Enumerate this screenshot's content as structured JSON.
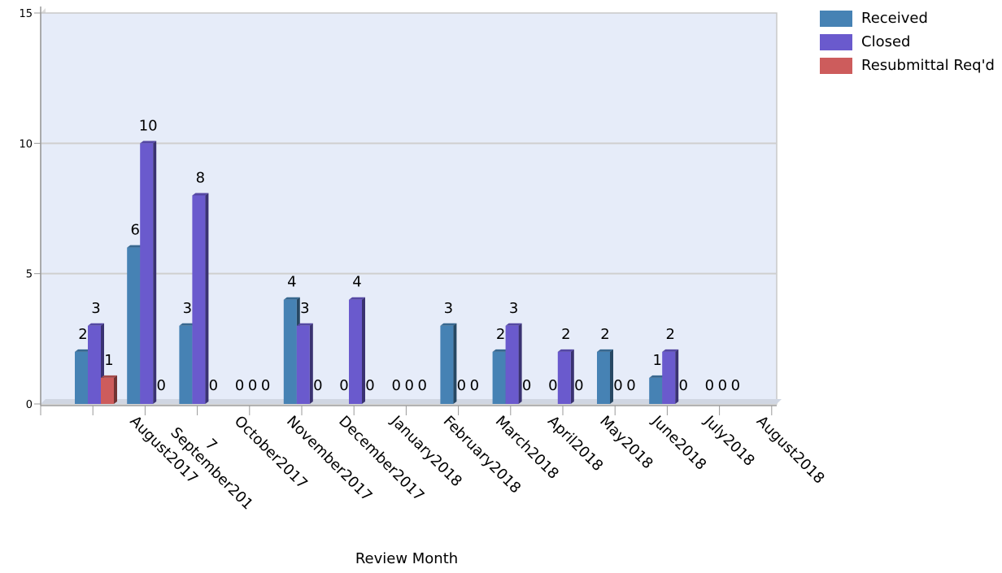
{
  "chart_data": {
    "type": "bar",
    "title": "",
    "xlabel": "Review Month",
    "ylabel": "",
    "ylim": [
      0,
      15
    ],
    "yticks": [
      "0",
      "5",
      "10",
      "15"
    ],
    "grid": true,
    "legend_position": "top-right",
    "categories": [
      "August2017",
      "September2017",
      "October2017",
      "November2017",
      "December2017",
      "January2018",
      "February2018",
      "March2018",
      "April2018",
      "May2018",
      "June2018",
      "July2018",
      "August2018"
    ],
    "category_lines": [
      [
        "August2017"
      ],
      [
        "7",
        "September201"
      ],
      [
        "October2017"
      ],
      [
        "November2017"
      ],
      [
        "December2017"
      ],
      [
        "January2018"
      ],
      [
        "February2018"
      ],
      [
        "March2018"
      ],
      [
        "April2018"
      ],
      [
        "May2018"
      ],
      [
        "June2018"
      ],
      [
        "July2018"
      ],
      [
        "August2018"
      ]
    ],
    "series": [
      {
        "name": "Received",
        "color": "#4682b4",
        "values": [
          2,
          6,
          3,
          0,
          4,
          0,
          0,
          3,
          2,
          0,
          2,
          1,
          0
        ]
      },
      {
        "name": "Closed",
        "color": "#6a5acd",
        "values": [
          3,
          10,
          8,
          0,
          3,
          4,
          0,
          0,
          3,
          2,
          0,
          2,
          0
        ]
      },
      {
        "name": "Resubmittal Req'd",
        "color": "#cd5c5c",
        "values": [
          1,
          0,
          0,
          0,
          0,
          0,
          0,
          0,
          0,
          0,
          0,
          0,
          0
        ]
      }
    ]
  }
}
